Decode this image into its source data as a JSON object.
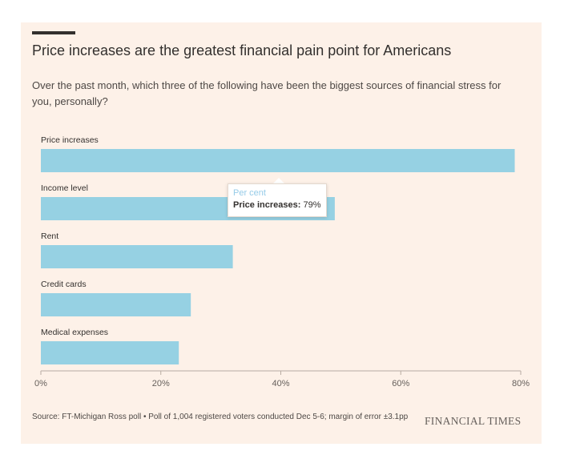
{
  "header": {
    "title": "Price increases are the greatest financial pain point for Americans",
    "subtitle": "Over the past month, which three of the following have been the biggest sources of financial stress for you, personally?"
  },
  "chart_data": {
    "type": "bar",
    "orientation": "horizontal",
    "categories": [
      "Price increases",
      "Income level",
      "Rent",
      "Credit cards",
      "Medical expenses"
    ],
    "values": [
      79,
      49,
      32,
      25,
      23
    ],
    "xlim": [
      0,
      80
    ],
    "ticks": [
      0,
      20,
      40,
      60,
      80
    ],
    "tick_labels": [
      "0%",
      "20%",
      "40%",
      "60%",
      "80%"
    ],
    "bar_color": "#96d1e3",
    "grid": false,
    "axis_color": "#b8aca3"
  },
  "tooltip": {
    "heading": "Per cent",
    "label": "Price increases:",
    "value": "79%"
  },
  "footer": {
    "source": "Source: FT-Michigan Ross poll • Poll of 1,004 registered voters conducted Dec 5-6; margin of error ±3.1pp",
    "brand": "FINANCIAL TIMES"
  }
}
